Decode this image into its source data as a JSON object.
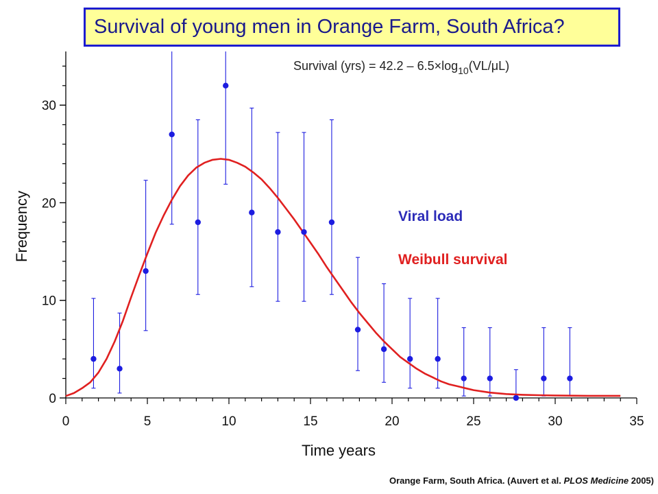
{
  "chart_data": {
    "type": "scatter",
    "title": "Survival of young men in Orange Farm, South Africa?",
    "xlabel": "Time years",
    "ylabel": "Frequency",
    "xlim": [
      0,
      35
    ],
    "ylim": [
      0,
      35.5
    ],
    "xticks": [
      0,
      5,
      10,
      15,
      20,
      25,
      30,
      35
    ],
    "yticks": [
      0,
      10,
      20,
      30
    ],
    "grid": false,
    "annotation": {
      "prefix": "Survival (yrs) = 42.2 – 6.5",
      "times": "×",
      "log": "log",
      "sub": "10",
      "arg": "(VL/",
      "mu": "μ",
      "end": "L)"
    },
    "legend": {
      "placement": "right",
      "items": [
        {
          "label": "Viral load",
          "color": "#2b2bb8"
        },
        {
          "label": "Weibull survival",
          "color": "#e02020"
        }
      ]
    },
    "series": [
      {
        "name": "Viral load",
        "type": "scatter",
        "color": "#1c1ce0",
        "points": [
          {
            "x": 1.7,
            "y": 4,
            "lo": 1.0,
            "hi": 10.2
          },
          {
            "x": 3.3,
            "y": 3,
            "lo": 0.5,
            "hi": 8.7
          },
          {
            "x": 4.9,
            "y": 13,
            "lo": 6.9,
            "hi": 22.3
          },
          {
            "x": 6.5,
            "y": 27,
            "lo": 17.8,
            "hi": 35.5
          },
          {
            "x": 8.1,
            "y": 18,
            "lo": 10.6,
            "hi": 28.5
          },
          {
            "x": 9.8,
            "y": 32,
            "lo": 21.9,
            "hi": 35.5
          },
          {
            "x": 11.4,
            "y": 19,
            "lo": 11.4,
            "hi": 29.7
          },
          {
            "x": 13.0,
            "y": 17,
            "lo": 9.9,
            "hi": 27.2
          },
          {
            "x": 14.6,
            "y": 17,
            "lo": 9.9,
            "hi": 27.2
          },
          {
            "x": 16.3,
            "y": 18,
            "lo": 10.6,
            "hi": 28.5
          },
          {
            "x": 17.9,
            "y": 7,
            "lo": 2.8,
            "hi": 14.4
          },
          {
            "x": 19.5,
            "y": 5,
            "lo": 1.6,
            "hi": 11.7
          },
          {
            "x": 21.1,
            "y": 4,
            "lo": 1.0,
            "hi": 10.2
          },
          {
            "x": 22.8,
            "y": 4,
            "lo": 1.0,
            "hi": 10.2
          },
          {
            "x": 24.4,
            "y": 2,
            "lo": 0.2,
            "hi": 7.2
          },
          {
            "x": 26.0,
            "y": 2,
            "lo": 0.2,
            "hi": 7.2
          },
          {
            "x": 27.6,
            "y": 0,
            "lo": 0,
            "hi": 2.9
          },
          {
            "x": 29.3,
            "y": 2,
            "lo": 0.2,
            "hi": 7.2
          },
          {
            "x": 30.9,
            "y": 2,
            "lo": 0.2,
            "hi": 7.2
          }
        ]
      },
      {
        "name": "Weibull survival",
        "type": "line",
        "color": "#e02020",
        "x": [
          0,
          0.5,
          1,
          1.5,
          2,
          2.5,
          3,
          3.5,
          4,
          4.5,
          5,
          5.5,
          6,
          6.5,
          7,
          7.5,
          8,
          8.5,
          9,
          9.5,
          10,
          10.5,
          11,
          11.5,
          12,
          12.5,
          13,
          13.5,
          14,
          14.5,
          15,
          15.5,
          16,
          16.5,
          17,
          17.5,
          18,
          18.5,
          19,
          19.5,
          20,
          20.5,
          21,
          21.5,
          22,
          22.5,
          23,
          23.5,
          24,
          24.5,
          25,
          26,
          27,
          28,
          29,
          30,
          31,
          32,
          33,
          34
        ],
        "y": [
          0.2,
          0.5,
          1.0,
          1.6,
          2.6,
          4.0,
          5.8,
          7.9,
          10.3,
          12.6,
          14.8,
          16.9,
          18.7,
          20.3,
          21.7,
          22.8,
          23.6,
          24.1,
          24.4,
          24.5,
          24.4,
          24.1,
          23.7,
          23.1,
          22.4,
          21.5,
          20.5,
          19.4,
          18.3,
          17.1,
          15.9,
          14.7,
          13.4,
          12.2,
          11.0,
          9.8,
          8.7,
          7.7,
          6.7,
          5.8,
          5.0,
          4.2,
          3.6,
          3.0,
          2.5,
          2.1,
          1.7,
          1.4,
          1.2,
          1.0,
          0.8,
          0.55,
          0.4,
          0.32,
          0.28,
          0.25,
          0.23,
          0.22,
          0.22,
          0.22
        ]
      }
    ]
  },
  "footer": {
    "prefix": "Orange Farm, South Africa. (Auvert et al. ",
    "journal": "PLOS Medicine",
    "suffix": " 2005)"
  }
}
